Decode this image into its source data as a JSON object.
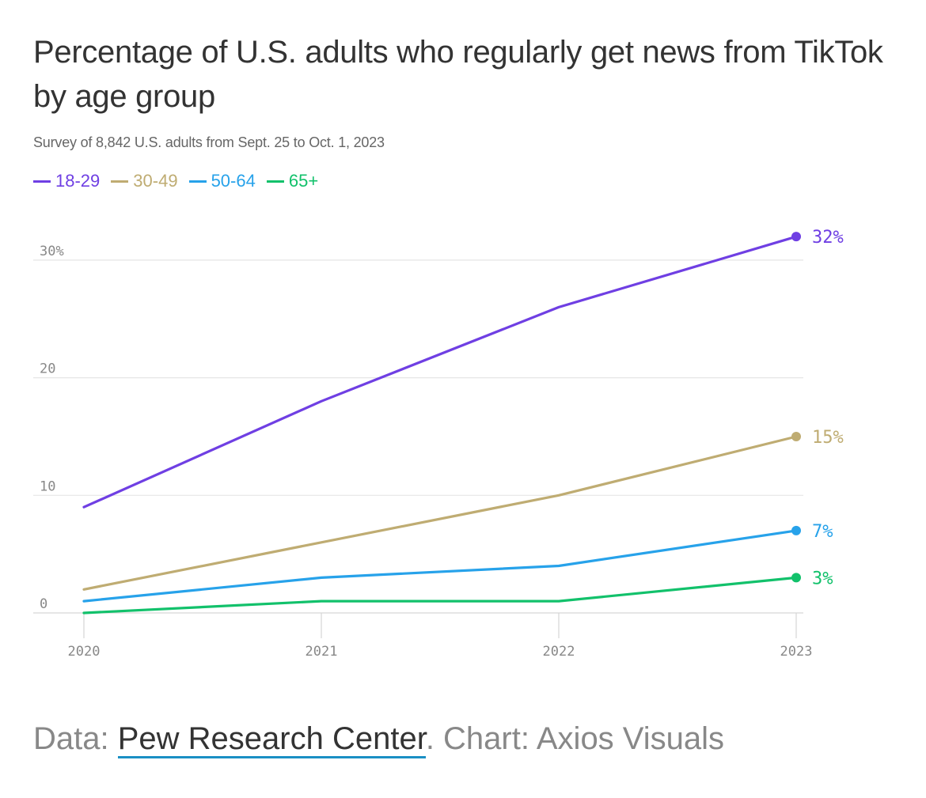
{
  "chart_data": {
    "type": "line",
    "title": "Percentage of U.S. adults who regularly get news from TikTok by age group",
    "subtitle": "Survey of 8,842 U.S. adults from Sept. 25 to Oct. 1, 2023",
    "x": [
      "2020",
      "2021",
      "2022",
      "2023"
    ],
    "series": [
      {
        "name": "18-29",
        "color": "#6f3fe3",
        "values": [
          9,
          18,
          26,
          32
        ],
        "end_label": "32%"
      },
      {
        "name": "30-49",
        "color": "#bfac72",
        "values": [
          2,
          6,
          10,
          15
        ],
        "end_label": "15%"
      },
      {
        "name": "50-64",
        "color": "#27a2ea",
        "values": [
          1,
          3,
          4,
          7
        ],
        "end_label": "7%"
      },
      {
        "name": "65+",
        "color": "#12c16b",
        "values": [
          0,
          1,
          1,
          3
        ],
        "end_label": "3%"
      }
    ],
    "yticks": [
      {
        "value": 0,
        "label": "0"
      },
      {
        "value": 10,
        "label": "10"
      },
      {
        "value": 20,
        "label": "20"
      },
      {
        "value": 30,
        "label": "30%"
      }
    ],
    "ylim": [
      0,
      33
    ],
    "grid": true,
    "legend_placement": "top-left"
  },
  "source": {
    "prefix": "Data: ",
    "link_text": "Pew Research Center",
    "suffix": ". Chart: Axios Visuals",
    "link_color": "#1a8fc4"
  }
}
